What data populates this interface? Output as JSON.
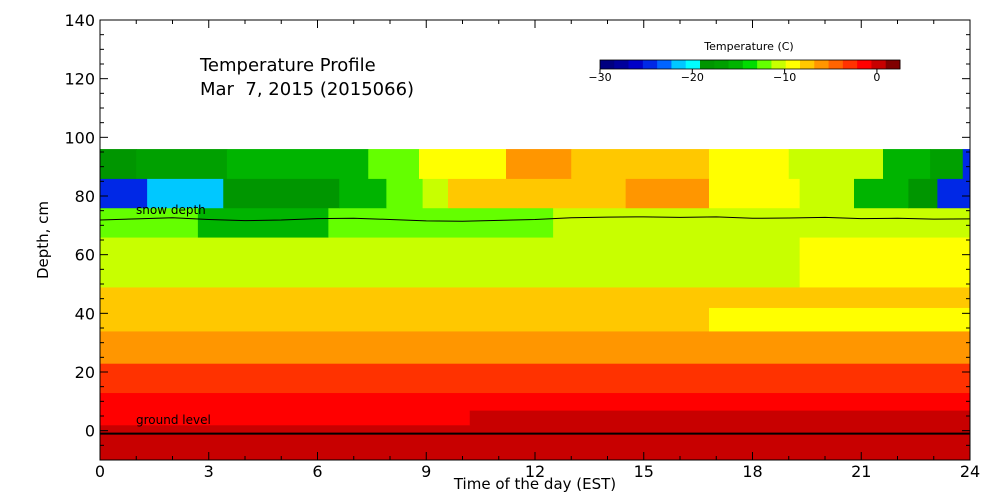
{
  "chart_data": {
    "type": "heatmap",
    "title_lines": [
      "Temperature Profile",
      "Mar  7, 2015 (2015066)"
    ],
    "xlabel": "Time of the day (EST)",
    "ylabel": "Depth, cm",
    "xlim": [
      0,
      24
    ],
    "ylim": [
      -10,
      140
    ],
    "x_ticks": [
      0,
      3,
      6,
      9,
      12,
      15,
      18,
      21,
      24
    ],
    "y_ticks": [
      0,
      20,
      40,
      60,
      80,
      100,
      120,
      140
    ],
    "grid": false,
    "colorbar": {
      "title": "Temperature (C)",
      "range": [
        -30,
        2.5
      ],
      "ticks": [
        -30,
        -20,
        -10,
        0
      ],
      "colors": [
        "#000080",
        "#00009c",
        "#0000c8",
        "#0028e6",
        "#0064ff",
        "#00c8ff",
        "#00ffff",
        "#009600",
        "#00a000",
        "#00b400",
        "#00dc00",
        "#64ff00",
        "#c8ff00",
        "#ffff00",
        "#ffc800",
        "#ff9600",
        "#ff6400",
        "#ff3200",
        "#ff0000",
        "#c80000",
        "#800000"
      ]
    },
    "bands": [
      {
        "depth_range": [
          -10,
          -1
        ],
        "segments": [
          {
            "x": [
              0,
              24
            ],
            "temp": 0.8
          }
        ]
      },
      {
        "depth_range": [
          -1,
          2
        ],
        "segments": [
          {
            "x": [
              0,
              24
            ],
            "temp": -0.5
          }
        ]
      },
      {
        "depth_range": [
          2,
          7
        ],
        "segments": [
          {
            "x": [
              0,
              10.2
            ],
            "temp": -1.5
          },
          {
            "x": [
              10.2,
              24
            ],
            "temp": -0.5
          }
        ]
      },
      {
        "depth_range": [
          7,
          13
        ],
        "segments": [
          {
            "x": [
              0,
              24
            ],
            "temp": -1.5
          }
        ]
      },
      {
        "depth_range": [
          13,
          23
        ],
        "segments": [
          {
            "x": [
              0,
              24
            ],
            "temp": -3.0
          }
        ]
      },
      {
        "depth_range": [
          23,
          34
        ],
        "segments": [
          {
            "x": [
              0,
              24
            ],
            "temp": -6.0
          }
        ]
      },
      {
        "depth_range": [
          34,
          42
        ],
        "segments": [
          {
            "x": [
              0,
              16.8
            ],
            "temp": -8.0
          },
          {
            "x": [
              16.8,
              24
            ],
            "temp": -9.0
          }
        ]
      },
      {
        "depth_range": [
          42,
          49
        ],
        "segments": [
          {
            "x": [
              0,
              24
            ],
            "temp": -8.0
          }
        ]
      },
      {
        "depth_range": [
          49,
          66
        ],
        "segments": [
          {
            "x": [
              0,
              19.3
            ],
            "temp": -10.5
          },
          {
            "x": [
              19.3,
              24
            ],
            "temp": -9.0
          }
        ]
      },
      {
        "depth_range": [
          66,
          76
        ],
        "segments": [
          {
            "x": [
              0,
              2.7
            ],
            "temp": -11.5
          },
          {
            "x": [
              2.7,
              6.3
            ],
            "temp": -15.0
          },
          {
            "x": [
              6.3,
              12.5
            ],
            "temp": -11.5
          },
          {
            "x": [
              12.5,
              24
            ],
            "temp": -10.5
          }
        ]
      },
      {
        "depth_range": [
          76,
          86
        ],
        "segments": [
          {
            "x": [
              0,
              1.3
            ],
            "temp": -24.0
          },
          {
            "x": [
              1.3,
              3.4
            ],
            "temp": -21.0
          },
          {
            "x": [
              3.4,
              6.6
            ],
            "temp": -18.0
          },
          {
            "x": [
              6.6,
              7.9
            ],
            "temp": -15.0
          },
          {
            "x": [
              7.9,
              8.9
            ],
            "temp": -11.5
          },
          {
            "x": [
              8.9,
              9.6
            ],
            "temp": -10.5
          },
          {
            "x": [
              9.6,
              11.5
            ],
            "temp": -8.0
          },
          {
            "x": [
              11.5,
              14.5
            ],
            "temp": -7.0
          },
          {
            "x": [
              14.5,
              16.8
            ],
            "temp": -6.0
          },
          {
            "x": [
              16.8,
              19.3
            ],
            "temp": -9.0
          },
          {
            "x": [
              19.3,
              20.8
            ],
            "temp": -11.0
          },
          {
            "x": [
              20.8,
              22.3
            ],
            "temp": -15.0
          },
          {
            "x": [
              22.3,
              23.1
            ],
            "temp": -18.0
          },
          {
            "x": [
              23.1,
              24
            ],
            "temp": -24.0
          }
        ]
      },
      {
        "depth_range": [
          86,
          96
        ],
        "segments": [
          {
            "x": [
              0,
              1.0
            ],
            "temp": -19.0
          },
          {
            "x": [
              1.0,
              3.5
            ],
            "temp": -17.0
          },
          {
            "x": [
              3.5,
              7.4
            ],
            "temp": -15.0
          },
          {
            "x": [
              7.4,
              8.8
            ],
            "temp": -11.5
          },
          {
            "x": [
              8.8,
              11.2
            ],
            "temp": -9.0
          },
          {
            "x": [
              11.2,
              13.0
            ],
            "temp": -6.0
          },
          {
            "x": [
              13.0,
              16.8
            ],
            "temp": -7.0
          },
          {
            "x": [
              16.8,
              19.0
            ],
            "temp": -9.0
          },
          {
            "x": [
              19.0,
              21.6
            ],
            "temp": -10.0
          },
          {
            "x": [
              21.6,
              22.9
            ],
            "temp": -15.0
          },
          {
            "x": [
              22.9,
              23.8
            ],
            "temp": -17.0
          },
          {
            "x": [
              23.8,
              24
            ],
            "temp": -24.0
          }
        ]
      }
    ],
    "snow_depth_line": {
      "label": "snow depth",
      "x": [
        0,
        1,
        2,
        3,
        4,
        5,
        6,
        7,
        8,
        9,
        10,
        11,
        12,
        13,
        14,
        15,
        16,
        17,
        18,
        19,
        20,
        21,
        22,
        23,
        24
      ],
      "y": [
        71.8,
        72.2,
        72.6,
        72.0,
        71.6,
        71.8,
        72.3,
        72.4,
        72.0,
        71.5,
        71.4,
        71.7,
        72.0,
        72.6,
        72.8,
        72.9,
        72.7,
        72.9,
        72.4,
        72.5,
        72.7,
        72.3,
        72.4,
        72.1,
        72.2
      ]
    },
    "ground_level_line": {
      "label": "ground level",
      "y": -1
    }
  }
}
